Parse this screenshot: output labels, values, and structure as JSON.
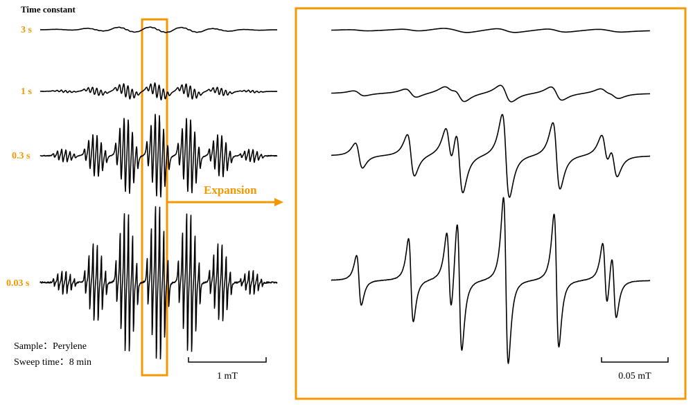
{
  "title": "Time constant",
  "traces": [
    {
      "label": "3 s"
    },
    {
      "label": "1 s"
    },
    {
      "label": "0.3 s"
    },
    {
      "label": "0.03 s"
    }
  ],
  "expansion": "Expansion",
  "sample": "Sample：Perylene",
  "sweep": "Sweep time：8 min",
  "scale_left": "1 mT",
  "scale_right": "0.05 mT"
}
